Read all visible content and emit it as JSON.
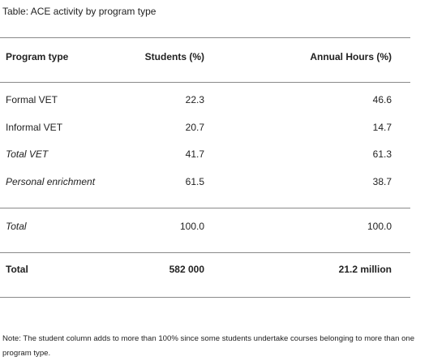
{
  "title": "Table: ACE activity by program type",
  "table": {
    "header": [
      "Program type",
      "Students (%)",
      "Annual Hours (%)"
    ],
    "rows": [
      [
        "Formal VET",
        "22.3",
        "46.6"
      ],
      [
        "Informal VET",
        "20.7",
        "14.7"
      ],
      [
        "Total VET",
        "41.7",
        "61.3"
      ],
      [
        "Personal enrichment",
        "61.5",
        "38.7"
      ],
      [
        "Total",
        "100.0",
        "100.0"
      ],
      [
        "Total",
        "582 000",
        "21.2 million"
      ]
    ]
  },
  "note": "Note: The student column adds to more than 100% since some students undertake courses belonging to more than one program type."
}
